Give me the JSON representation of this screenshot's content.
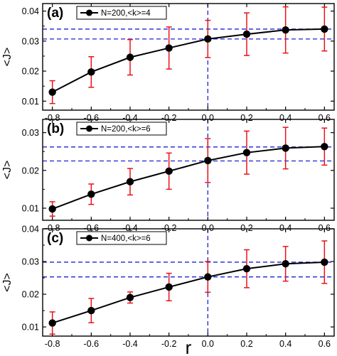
{
  "chart_data": [
    {
      "type": "line",
      "panel_label": "(a)",
      "ylabel": "<J>",
      "xlabel": "",
      "xlim": [
        -0.85,
        0.65
      ],
      "ylim": [
        0.007,
        0.0425
      ],
      "x_ticks": [
        "-0.8",
        "-0.6",
        "-0.4",
        "-0.2",
        "0.0",
        "0.2",
        "0.4",
        "0.6"
      ],
      "x_tick_values": [
        -0.8,
        -0.6,
        -0.4,
        -0.2,
        0.0,
        0.2,
        0.4,
        0.6
      ],
      "y_ticks": [
        "0.01",
        "0.02",
        "0.03",
        "0.04"
      ],
      "y_tick_values": [
        0.01,
        0.02,
        0.03,
        0.04
      ],
      "legend": {
        "label": "N=200,<k>=4",
        "placement": "top-left"
      },
      "reference_lines": {
        "vertical_x": 0.0,
        "horizontal_y": [
          0.0307,
          0.034
        ]
      },
      "series": [
        {
          "name": "N=200,<k>=4",
          "x": [
            -0.8,
            -0.6,
            -0.4,
            -0.2,
            0.0,
            0.2,
            0.4,
            0.6
          ],
          "y": [
            0.013,
            0.0197,
            0.0246,
            0.0277,
            0.0307,
            0.0323,
            0.0337,
            0.034
          ],
          "err": [
            0.0038,
            0.0051,
            0.0059,
            0.007,
            0.0062,
            0.0071,
            0.0077,
            0.0073
          ]
        }
      ]
    },
    {
      "type": "line",
      "panel_label": "(b)",
      "ylabel": "<J>",
      "xlabel": "",
      "xlim": [
        -0.85,
        0.65
      ],
      "ylim": [
        0.0068,
        0.0335
      ],
      "x_ticks": [
        "-0.8",
        "-0.6",
        "-0.4",
        "-0.2",
        "0.0",
        "0.2",
        "0.4",
        "0.6"
      ],
      "x_tick_values": [
        -0.8,
        -0.6,
        -0.4,
        -0.2,
        0.0,
        0.2,
        0.4,
        0.6
      ],
      "y_ticks": [
        "0.01",
        "0.02",
        "0.03"
      ],
      "y_tick_values": [
        0.01,
        0.02,
        0.03
      ],
      "legend": {
        "label": "N=200,<k>=6",
        "placement": "top-left"
      },
      "reference_lines": {
        "vertical_x": 0.0,
        "horizontal_y": [
          0.0225,
          0.0262
        ]
      },
      "series": [
        {
          "name": "N=200,<k>=6",
          "x": [
            -0.8,
            -0.6,
            -0.4,
            -0.2,
            0.0,
            0.2,
            0.4,
            0.6
          ],
          "y": [
            0.0098,
            0.0137,
            0.017,
            0.0198,
            0.0226,
            0.0247,
            0.0259,
            0.0263
          ],
          "err": [
            0.0019,
            0.0027,
            0.0035,
            0.0048,
            0.0058,
            0.0057,
            0.0055,
            0.0049
          ]
        }
      ]
    },
    {
      "type": "line",
      "panel_label": "(c)",
      "ylabel": "<J>",
      "xlabel": "r",
      "xlim": [
        -0.85,
        0.65
      ],
      "ylim": [
        0.0072,
        0.04
      ],
      "x_ticks": [
        "-0.8",
        "-0.6",
        "-0.4",
        "-0.2",
        "0.0",
        "0.2",
        "0.4",
        "0.6"
      ],
      "x_tick_values": [
        -0.8,
        -0.6,
        -0.4,
        -0.2,
        0.0,
        0.2,
        0.4,
        0.6
      ],
      "y_ticks": [
        "0.01",
        "0.02",
        "0.03",
        "0.04"
      ],
      "y_tick_values": [
        0.01,
        0.02,
        0.03,
        0.04
      ],
      "legend": {
        "label": "N=400,<k>=6",
        "placement": "top-left"
      },
      "reference_lines": {
        "vertical_x": 0.0,
        "horizontal_y": [
          0.0253,
          0.0298
        ]
      },
      "series": [
        {
          "name": "N=400,<k>=6",
          "x": [
            -0.8,
            -0.6,
            -0.4,
            -0.2,
            0.0,
            0.2,
            0.4,
            0.6
          ],
          "y": [
            0.0112,
            0.015,
            0.019,
            0.0222,
            0.0253,
            0.0278,
            0.0293,
            0.0298
          ],
          "err": [
            0.0034,
            0.0037,
            0.0017,
            0.0042,
            0.0047,
            0.0058,
            0.0053,
            0.0065
          ]
        }
      ]
    }
  ]
}
